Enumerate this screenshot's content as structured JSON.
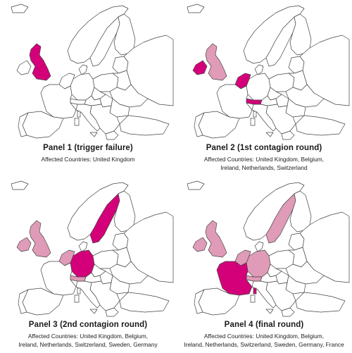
{
  "colors": {
    "trigger": "#d4007a",
    "contagion": "#e09bb8",
    "unaffected": "#ffffff",
    "outline": "#444444"
  },
  "panels": [
    {
      "title": "Panel 1 (trigger failure)",
      "caption": [
        "Affected Countries: United Kingdom"
      ],
      "countries": {
        "uk": "trigger"
      }
    },
    {
      "title": "Panel 2 (1st contagion round)",
      "caption": [
        "Affected Countries: United Kingdom, Belgium,",
        "Ireland, Netherlands, Switzerland"
      ],
      "countries": {
        "uk": "contagion",
        "ireland": "trigger",
        "benelux": "trigger",
        "switzerland": "trigger"
      }
    },
    {
      "title": "Panel 3 (2nd contagion round)",
      "caption": [
        "Affected Countries: United Kingdom, Belgium,",
        "Ireland, Netherlands, Switzerland, Sweden, Germany"
      ],
      "countries": {
        "uk": "contagion",
        "ireland": "contagion",
        "benelux": "contagion",
        "switzerland": "contagion",
        "sweden": "trigger",
        "germany": "trigger"
      }
    },
    {
      "title": "Panel 4 (final round)",
      "caption": [
        "Affected Countries: United Kingdom, Belgium,",
        "Ireland, Netherlands, Switzerland, Sweden, Germany, France"
      ],
      "countries": {
        "uk": "contagion",
        "ireland": "contagion",
        "benelux": "contagion",
        "switzerland": "contagion",
        "sweden": "contagion",
        "germany": "contagion",
        "france": "trigger",
        "corsica": "trigger"
      }
    }
  ]
}
